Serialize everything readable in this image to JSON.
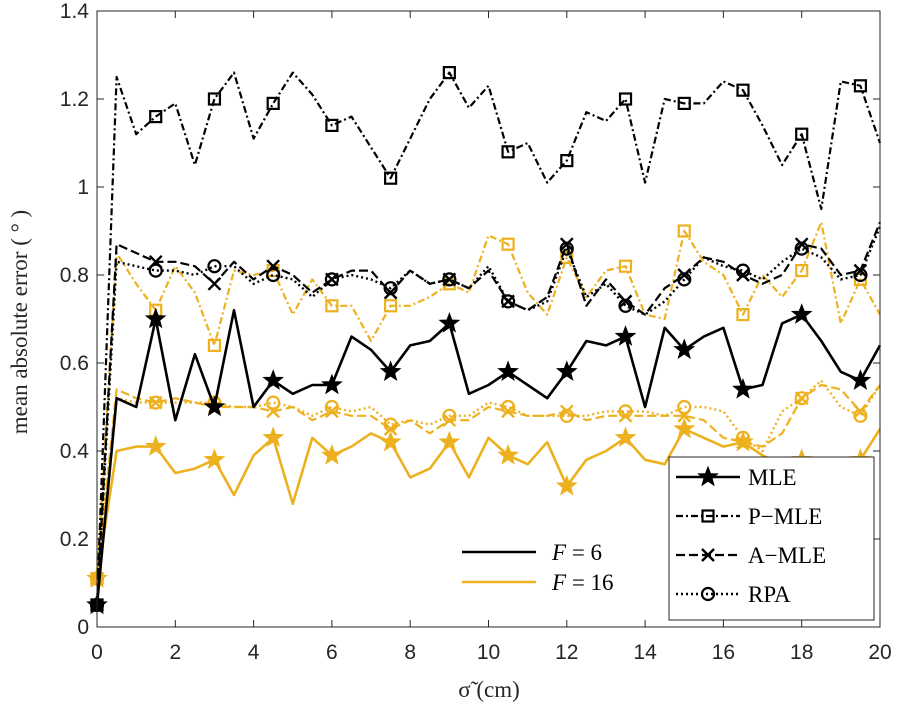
{
  "chart_data": {
    "type": "line",
    "xlabel": "σ̃ (cm)",
    "ylabel": "mean absolute error ( ° )",
    "xlim": [
      0,
      20
    ],
    "ylim": [
      0,
      1.4
    ],
    "xticks": [
      "0",
      "2",
      "4",
      "6",
      "8",
      "10",
      "12",
      "14",
      "16",
      "18",
      "20"
    ],
    "yticks": [
      "0",
      "0.2",
      "0.4",
      "0.6",
      "0.8",
      "1",
      "1.2",
      "1.4"
    ],
    "grid": false,
    "colors": {
      "F6": "#000000",
      "F16": "#EDB120"
    },
    "legend_methods": [
      {
        "label": "MLE",
        "style": "solid",
        "marker": "star"
      },
      {
        "label": "P−MLE",
        "style": "dashdot",
        "marker": "square"
      },
      {
        "label": "A−MLE",
        "style": "dashed",
        "marker": "x"
      },
      {
        "label": "RPA",
        "style": "dotted",
        "marker": "circle"
      }
    ],
    "legend_F": [
      {
        "label": "F = 6",
        "math": "F",
        "rest": " = 6",
        "color": "#000000"
      },
      {
        "label": "F = 16",
        "math": "F",
        "rest": " = 16",
        "color": "#EDB120"
      }
    ],
    "x": [
      0,
      0.5,
      1,
      1.5,
      2,
      2.5,
      3,
      3.5,
      4,
      4.5,
      5,
      5.5,
      6,
      6.5,
      7,
      7.5,
      8,
      8.5,
      9,
      9.5,
      10,
      10.5,
      11,
      11.5,
      12,
      12.5,
      13,
      13.5,
      14,
      14.5,
      15,
      15.5,
      16,
      16.5,
      17,
      17.5,
      18,
      18.5,
      19,
      19.5,
      20
    ],
    "marker_every": 3,
    "series": [
      {
        "name": "MLE F=6",
        "method": "MLE",
        "group": "F6",
        "values": [
          0.05,
          0.52,
          0.5,
          0.7,
          0.47,
          0.62,
          0.5,
          0.72,
          0.5,
          0.56,
          0.53,
          0.55,
          0.55,
          0.66,
          0.63,
          0.58,
          0.64,
          0.65,
          0.69,
          0.53,
          0.55,
          0.58,
          0.55,
          0.52,
          0.58,
          0.65,
          0.64,
          0.66,
          0.5,
          0.68,
          0.63,
          0.66,
          0.68,
          0.54,
          0.55,
          0.69,
          0.71,
          0.65,
          0.58,
          0.56,
          0.64
        ]
      },
      {
        "name": "P-MLE F=6",
        "method": "P-MLE",
        "group": "F6",
        "values": [
          0.05,
          1.25,
          1.12,
          1.16,
          1.19,
          1.05,
          1.2,
          1.26,
          1.11,
          1.19,
          1.26,
          1.21,
          1.14,
          1.16,
          1.09,
          1.02,
          1.11,
          1.2,
          1.26,
          1.18,
          1.23,
          1.08,
          1.1,
          1.01,
          1.06,
          1.17,
          1.15,
          1.2,
          1.01,
          1.2,
          1.19,
          1.19,
          1.24,
          1.22,
          1.14,
          1.05,
          1.12,
          0.95,
          1.24,
          1.23,
          1.1
        ]
      },
      {
        "name": "A-MLE F=6",
        "method": "A-MLE",
        "group": "F6",
        "values": [
          0.05,
          0.87,
          0.85,
          0.83,
          0.83,
          0.82,
          0.78,
          0.83,
          0.79,
          0.82,
          0.8,
          0.76,
          0.79,
          0.81,
          0.81,
          0.76,
          0.81,
          0.78,
          0.79,
          0.77,
          0.81,
          0.74,
          0.72,
          0.75,
          0.87,
          0.73,
          0.79,
          0.74,
          0.71,
          0.77,
          0.8,
          0.84,
          0.83,
          0.8,
          0.78,
          0.8,
          0.87,
          0.86,
          0.8,
          0.81,
          0.92
        ]
      },
      {
        "name": "RPA F=6",
        "method": "RPA",
        "group": "F6",
        "values": [
          0.05,
          0.83,
          0.82,
          0.81,
          0.81,
          0.8,
          0.82,
          0.82,
          0.78,
          0.8,
          0.79,
          0.75,
          0.79,
          0.8,
          0.79,
          0.77,
          0.81,
          0.78,
          0.79,
          0.77,
          0.82,
          0.74,
          0.72,
          0.74,
          0.86,
          0.75,
          0.78,
          0.73,
          0.71,
          0.74,
          0.79,
          0.84,
          0.82,
          0.81,
          0.79,
          0.83,
          0.86,
          0.84,
          0.79,
          0.8,
          0.91
        ]
      },
      {
        "name": "MLE F=16",
        "method": "MLE",
        "group": "F16",
        "values": [
          0.11,
          0.4,
          0.41,
          0.41,
          0.35,
          0.36,
          0.38,
          0.3,
          0.39,
          0.43,
          0.28,
          0.43,
          0.39,
          0.41,
          0.44,
          0.42,
          0.34,
          0.36,
          0.42,
          0.34,
          0.43,
          0.39,
          0.37,
          0.42,
          0.32,
          0.38,
          0.4,
          0.43,
          0.38,
          0.37,
          0.45,
          0.43,
          0.41,
          0.42,
          0.39,
          0.37,
          0.38,
          0.35,
          0.38,
          0.38,
          0.45
        ]
      },
      {
        "name": "P-MLE F=16",
        "method": "P-MLE",
        "group": "F16",
        "values": [
          0.11,
          0.85,
          0.78,
          0.72,
          0.82,
          0.76,
          0.64,
          0.81,
          0.8,
          0.81,
          0.71,
          0.79,
          0.73,
          0.73,
          0.65,
          0.73,
          0.73,
          0.75,
          0.78,
          0.76,
          0.89,
          0.87,
          0.76,
          0.71,
          0.84,
          0.75,
          0.81,
          0.82,
          0.71,
          0.7,
          0.9,
          0.83,
          0.8,
          0.71,
          0.8,
          0.75,
          0.81,
          0.92,
          0.69,
          0.79,
          0.71
        ]
      },
      {
        "name": "A-MLE F=16",
        "method": "A-MLE",
        "group": "F16",
        "values": [
          0.11,
          0.54,
          0.52,
          0.51,
          0.52,
          0.51,
          0.5,
          0.5,
          0.5,
          0.49,
          0.5,
          0.47,
          0.49,
          0.48,
          0.48,
          0.45,
          0.47,
          0.44,
          0.47,
          0.47,
          0.5,
          0.49,
          0.48,
          0.48,
          0.49,
          0.47,
          0.48,
          0.48,
          0.48,
          0.48,
          0.48,
          0.47,
          0.43,
          0.42,
          0.41,
          0.44,
          0.52,
          0.55,
          0.54,
          0.49,
          0.55
        ]
      },
      {
        "name": "RPA F=16",
        "method": "RPA",
        "group": "F16",
        "values": [
          0.11,
          0.52,
          0.51,
          0.51,
          0.51,
          0.51,
          0.51,
          0.5,
          0.5,
          0.51,
          0.5,
          0.48,
          0.5,
          0.49,
          0.5,
          0.46,
          0.47,
          0.46,
          0.48,
          0.48,
          0.51,
          0.5,
          0.48,
          0.48,
          0.48,
          0.48,
          0.49,
          0.49,
          0.49,
          0.48,
          0.5,
          0.5,
          0.49,
          0.43,
          0.4,
          0.49,
          0.52,
          0.56,
          0.5,
          0.48,
          0.55
        ]
      }
    ]
  }
}
